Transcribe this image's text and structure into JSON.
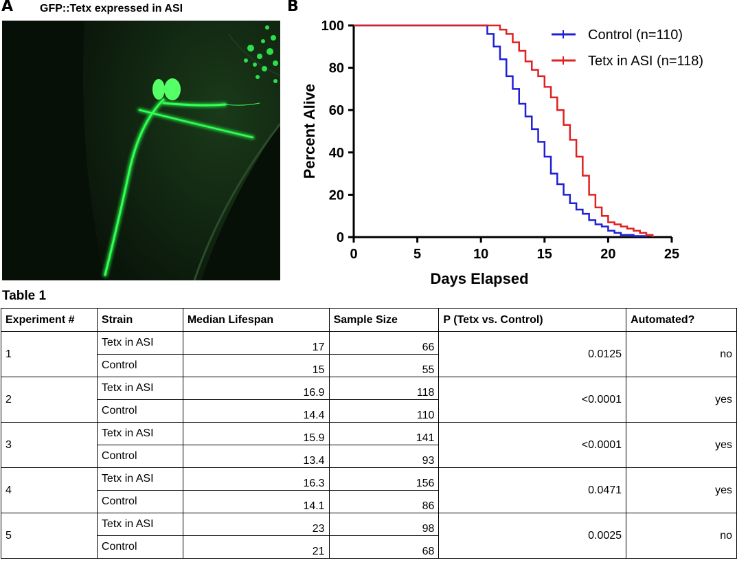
{
  "panel_a": {
    "letter": "A",
    "title": "GFP::Tetx expressed in ASI"
  },
  "panel_b": {
    "letter": "B"
  },
  "colors": {
    "control": "#1f1fd6",
    "tetx": "#e02020",
    "gfp": "#22ff44"
  },
  "chart_data": {
    "type": "line",
    "title": "",
    "xlabel": "Days Elapsed",
    "ylabel": "Percent Alive",
    "xlim": [
      0,
      25
    ],
    "ylim": [
      0,
      100
    ],
    "xticks": [
      0,
      5,
      10,
      15,
      20,
      25
    ],
    "yticks": [
      0,
      20,
      40,
      60,
      80,
      100
    ],
    "legend_position": "top-right",
    "series": [
      {
        "name": "Control (n=110)",
        "color": "#1f1fd6",
        "x": [
          0,
          10,
          10.5,
          11,
          11.5,
          12,
          12.5,
          13,
          13.5,
          14,
          14.5,
          15,
          15.5,
          16,
          16.5,
          17,
          17.5,
          18,
          18.5,
          19,
          19.5,
          20,
          20.5,
          21,
          22,
          23
        ],
        "y": [
          100,
          100,
          96,
          90,
          84,
          76,
          70,
          63,
          57,
          51,
          45,
          38,
          30,
          25,
          20,
          16,
          13,
          11,
          8,
          6,
          5,
          3,
          2,
          1,
          0.5,
          0
        ]
      },
      {
        "name": "Tetx in ASI (n=118)",
        "color": "#e02020",
        "x": [
          0,
          11,
          11.5,
          12,
          12.5,
          13,
          13.5,
          14,
          14.5,
          15,
          15.5,
          16,
          16.5,
          17,
          17.5,
          18,
          18.5,
          19,
          19.5,
          20,
          20.5,
          21,
          21.5,
          22,
          22.5,
          23,
          23.5
        ],
        "y": [
          100,
          100,
          98,
          96,
          92,
          88,
          83,
          79,
          76,
          71,
          66,
          60,
          53,
          46,
          38,
          29,
          20,
          14,
          10,
          7,
          6,
          5,
          4,
          3,
          2,
          1,
          0
        ]
      }
    ]
  },
  "table": {
    "title": "Table 1",
    "headers": [
      "Experiment #",
      "Strain",
      "Median Lifespan",
      "Sample Size",
      "P (Tetx vs. Control)",
      "Automated?"
    ],
    "experiments": [
      {
        "id": "1",
        "p": "0.0125",
        "automated": "no",
        "rows": [
          {
            "strain": "Tetx in ASI",
            "median": "17",
            "n": "66"
          },
          {
            "strain": "Control",
            "median": "15",
            "n": "55"
          }
        ]
      },
      {
        "id": "2",
        "p": "<0.0001",
        "automated": "yes",
        "rows": [
          {
            "strain": "Tetx in ASI",
            "median": "16.9",
            "n": "118"
          },
          {
            "strain": "Control",
            "median": "14.4",
            "n": "110"
          }
        ]
      },
      {
        "id": "3",
        "p": "<0.0001",
        "automated": "yes",
        "rows": [
          {
            "strain": "Tetx in ASI",
            "median": "15.9",
            "n": "141"
          },
          {
            "strain": "Control",
            "median": "13.4",
            "n": "93"
          }
        ]
      },
      {
        "id": "4",
        "p": "0.0471",
        "automated": "yes",
        "rows": [
          {
            "strain": "Tetx in ASI",
            "median": "16.3",
            "n": "156"
          },
          {
            "strain": "Control",
            "median": "14.1",
            "n": "86"
          }
        ]
      },
      {
        "id": "5",
        "p": "0.0025",
        "automated": "no",
        "rows": [
          {
            "strain": "Tetx in ASI",
            "median": "23",
            "n": "98"
          },
          {
            "strain": "Control",
            "median": "21",
            "n": "68"
          }
        ]
      }
    ]
  }
}
